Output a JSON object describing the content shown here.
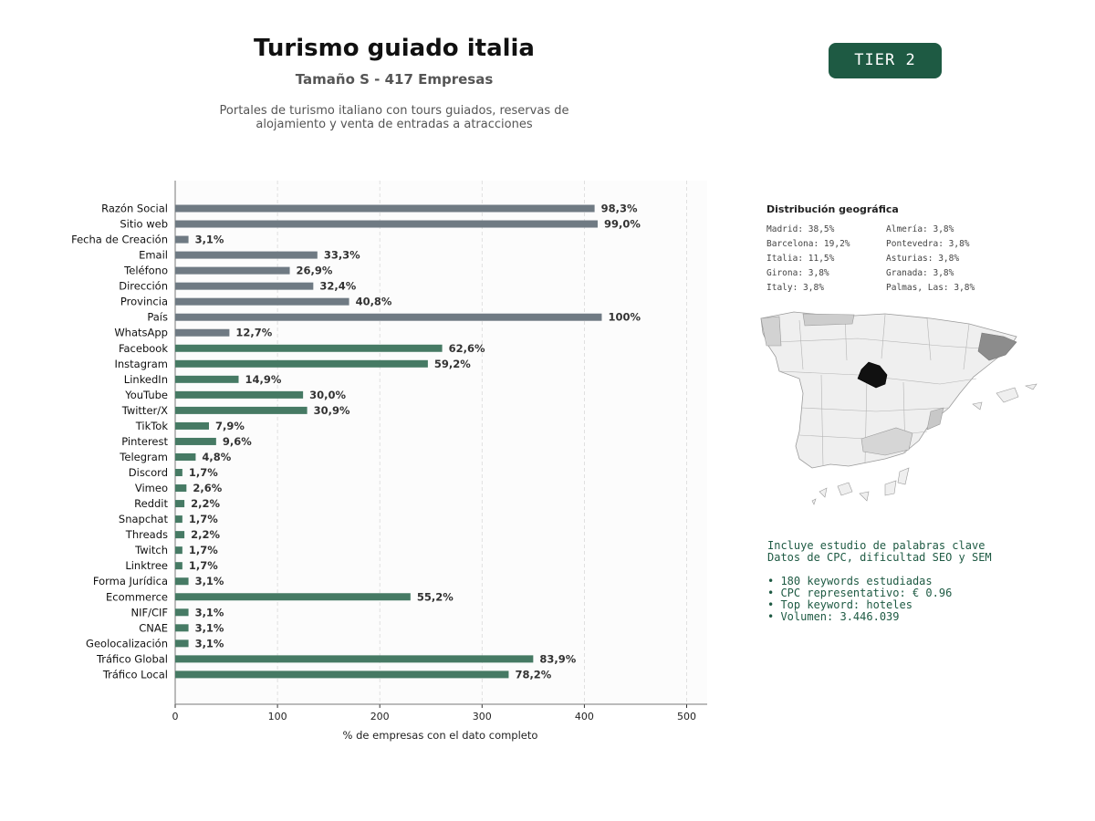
{
  "header": {
    "title": "Turismo guiado italia",
    "subtitle": "Tamaño S - 417 Empresas",
    "description_line1": "Portales de turismo italiano con tours guiados, reservas de",
    "description_line2": "alojamiento y venta de entradas a atracciones",
    "tier_badge": "TIER 2"
  },
  "colors": {
    "basic_bar": "#6f7a83",
    "social_bar": "#467a64",
    "badge": "#1e5a43",
    "keyword_text": "#1e5a43",
    "map_highlight": "#111111"
  },
  "chart_data": {
    "type": "bar",
    "orientation": "horizontal",
    "xlabel": "% de empresas con el dato completo",
    "xlim": [
      0,
      520
    ],
    "xticks": [
      0,
      100,
      200,
      300,
      400,
      500
    ],
    "grid": "vertical dashed",
    "categories": [
      "Razón Social",
      "Sitio web",
      "Fecha de Creación",
      "Email",
      "Teléfono",
      "Dirección",
      "Provincia",
      "País",
      "WhatsApp",
      "Facebook",
      "Instagram",
      "LinkedIn",
      "YouTube",
      "Twitter/X",
      "TikTok",
      "Pinterest",
      "Telegram",
      "Discord",
      "Vimeo",
      "Reddit",
      "Snapchat",
      "Threads",
      "Twitch",
      "Linktree",
      "Forma Jurídica",
      "Ecommerce",
      "NIF/CIF",
      "CNAE",
      "Geolocalización",
      "Tráfico Global",
      "Tráfico Local"
    ],
    "values": [
      410,
      413,
      13,
      139,
      112,
      135,
      170,
      417,
      53,
      261,
      247,
      62,
      125,
      129,
      33,
      40,
      20,
      7,
      11,
      9,
      7,
      9,
      7,
      7,
      13,
      230,
      13,
      13,
      13,
      350,
      326
    ],
    "labels": [
      "98,3%",
      "99,0%",
      "3,1%",
      "33,3%",
      "26,9%",
      "32,4%",
      "40,8%",
      "100%",
      "12,7%",
      "62,6%",
      "59,2%",
      "14,9%",
      "30,0%",
      "30,9%",
      "7,9%",
      "9,6%",
      "4,8%",
      "1,7%",
      "2,6%",
      "2,2%",
      "1,7%",
      "2,2%",
      "1,7%",
      "1,7%",
      "3,1%",
      "55,2%",
      "3,1%",
      "3,1%",
      "3,1%",
      "83,9%",
      "78,2%"
    ],
    "groups": [
      "basic",
      "basic",
      "basic",
      "basic",
      "basic",
      "basic",
      "basic",
      "basic",
      "basic",
      "social",
      "social",
      "social",
      "social",
      "social",
      "social",
      "social",
      "social",
      "social",
      "social",
      "social",
      "social",
      "social",
      "social",
      "social",
      "social",
      "social",
      "social",
      "social",
      "social",
      "social",
      "social"
    ]
  },
  "geo": {
    "title": "Distribución geográfica",
    "left": [
      "Madrid: 38,5%",
      "Barcelona: 19,2%",
      "Italia: 11,5%",
      "Girona: 3,8%",
      "Italy: 3,8%"
    ],
    "right": [
      "Almería: 3,8%",
      "Pontevedra: 3,8%",
      "Asturias: 3,8%",
      "Granada: 3,8%",
      "Palmas, Las: 3,8%"
    ]
  },
  "keywords": {
    "line1": "Incluye estudio de palabras clave",
    "line2": "Datos de CPC, dificultad SEO y SEM",
    "bullet1": "• 180 keywords estudiadas",
    "bullet2": "• CPC representativo: € 0.96",
    "bullet3": "• Top keyword: hoteles",
    "bullet4": "• Volumen: 3.446.039"
  }
}
